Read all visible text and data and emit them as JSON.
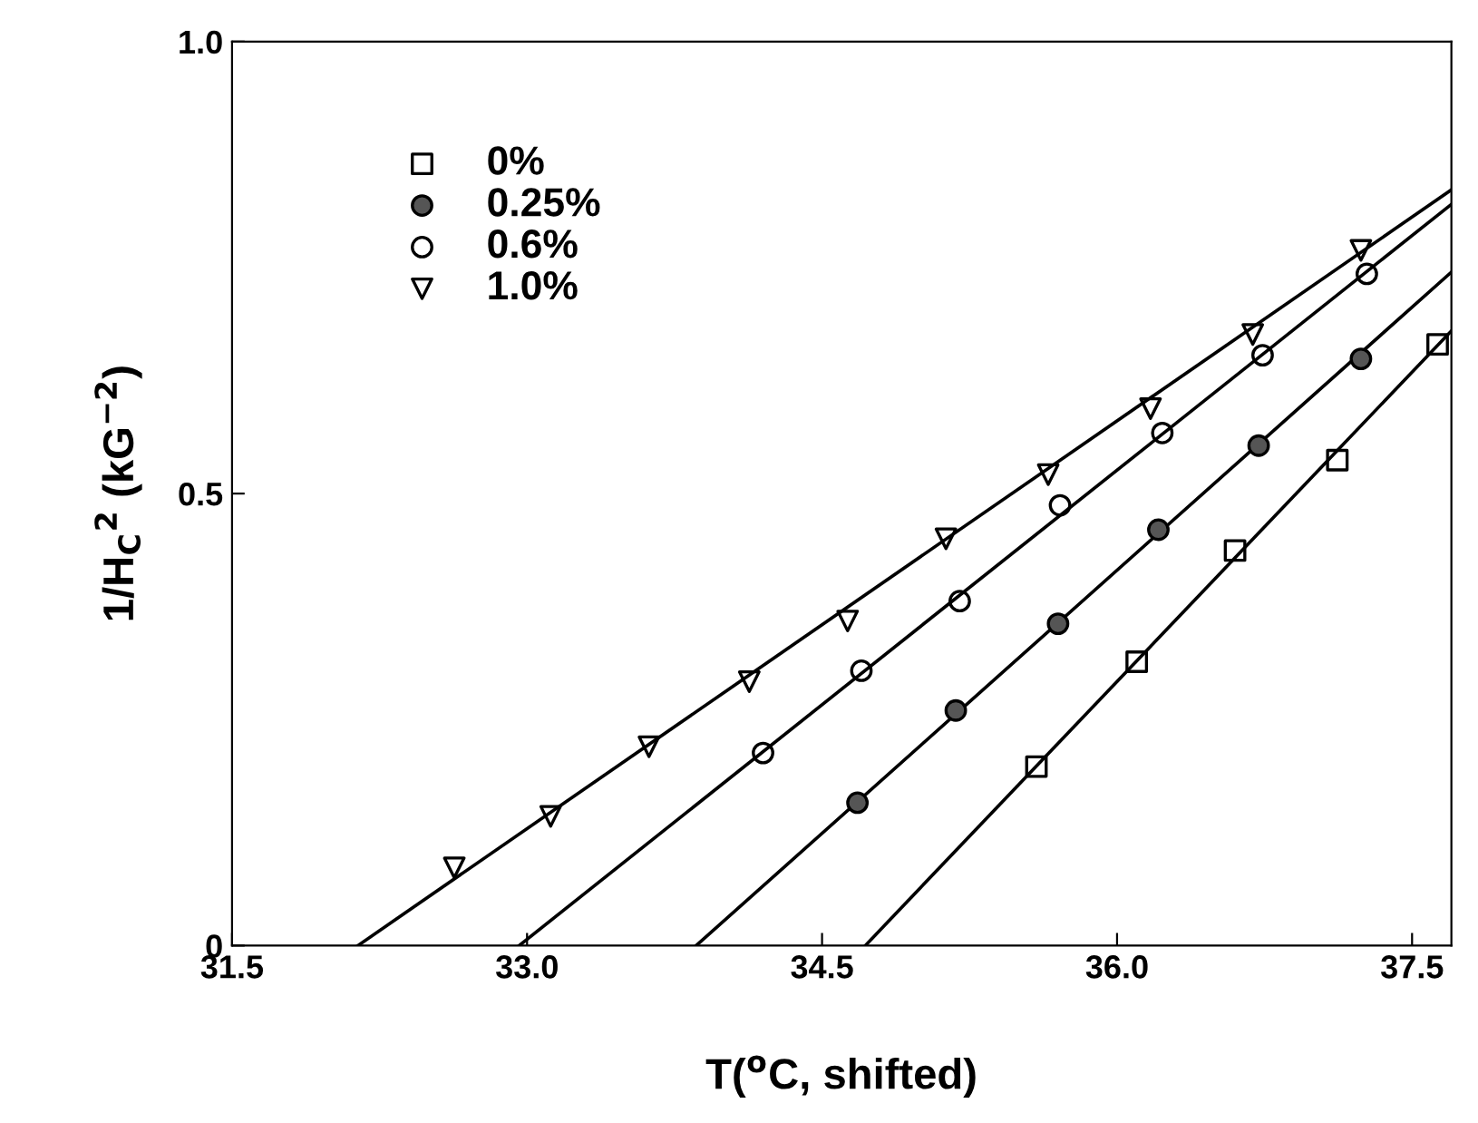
{
  "chart_data": {
    "type": "scatter",
    "xlabel": "T($^{o}$C, shifted)",
    "ylabel": "1/H$_{C}$$^{2}$ (kG$^{−2}$)",
    "xlim": [
      31.5,
      37.7
    ],
    "xticks": [
      {
        "value": 31.5,
        "label": "31.5"
      },
      {
        "value": 33.0,
        "label": "33.0"
      },
      {
        "value": 34.5,
        "label": "34.5"
      },
      {
        "value": 36.0,
        "label": "36.0"
      },
      {
        "value": 37.5,
        "label": "37.5"
      }
    ],
    "ylim": [
      0,
      1.0
    ],
    "yticks": [
      0,
      0.5,
      {
        "value": 1.0,
        "label": "1.0"
      }
    ],
    "grid": false,
    "legend": "top left",
    "series": [
      {
        "name": "0%",
        "color": "#000000",
        "marker": "square",
        "x": [
          35.59,
          36.1,
          36.6,
          37.12,
          37.63
        ],
        "values": [
          0.198,
          0.314,
          0.437,
          0.537,
          0.665
        ]
      },
      {
        "name": "0.25%",
        "color": "#555555",
        "marker": "circle",
        "x": [
          34.68,
          35.18,
          35.7,
          36.21,
          36.72,
          37.24
        ],
        "values": [
          0.158,
          0.26,
          0.356,
          0.46,
          0.553,
          0.649
        ]
      },
      {
        "name": "0.6%",
        "color": "#000000",
        "marker": "circle",
        "x": [
          34.2,
          34.7,
          35.2,
          35.71,
          36.23,
          36.74,
          37.27
        ],
        "values": [
          0.213,
          0.304,
          0.381,
          0.487,
          0.567,
          0.653,
          0.743
        ]
      },
      {
        "name": "1.0%",
        "color": "#000000",
        "marker": "triangle",
        "x": [
          32.63,
          33.12,
          33.62,
          34.13,
          34.63,
          35.13,
          35.65,
          36.17,
          36.69,
          37.24
        ],
        "values": [
          0.086,
          0.143,
          0.22,
          0.292,
          0.359,
          0.45,
          0.521,
          0.594,
          0.676,
          0.769
        ]
      },
      {
        "type": "line",
        "color": "#000000",
        "marker": "none",
        "x": [
          34.72,
          37.7
        ],
        "values": [
          0,
          0.68
        ]
      },
      {
        "type": "line",
        "color": "#000000",
        "marker": "none",
        "x": [
          33.86,
          37.7
        ],
        "values": [
          0,
          0.745
        ]
      },
      {
        "type": "line",
        "color": "#000000",
        "marker": "none",
        "x": [
          32.96,
          37.7
        ],
        "values": [
          0,
          0.82
        ]
      },
      {
        "type": "line",
        "color": "#000000",
        "marker": "none",
        "x": [
          32.14,
          37.7
        ],
        "values": [
          0,
          0.836
        ]
      }
    ]
  }
}
